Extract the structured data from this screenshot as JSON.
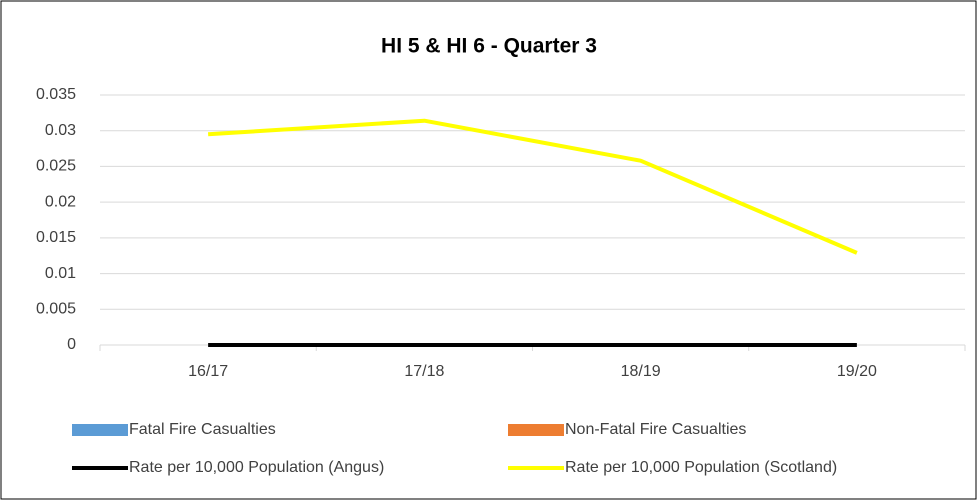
{
  "chart_data": {
    "type": "combo",
    "title": "HI 5 & HI 6 - Quarter 3",
    "categories": [
      "16/17",
      "17/18",
      "18/19",
      "19/20"
    ],
    "series": [
      {
        "name": "Fatal Fire Casualties",
        "type": "bar",
        "color": "#5b9bd5",
        "values": [
          0,
          0,
          0,
          0
        ]
      },
      {
        "name": "Non-Fatal Fire Casualties",
        "type": "bar",
        "color": "#ed7d31",
        "values": [
          0,
          0,
          0,
          0
        ]
      },
      {
        "name": "Rate per 10,000 Population (Angus)",
        "type": "line",
        "color": "#000000",
        "values": [
          0,
          0,
          0,
          0
        ]
      },
      {
        "name": "Rate per 10,000 Population (Scotland)",
        "type": "line",
        "color": "#ffff00",
        "values": [
          0.0295,
          0.0314,
          0.0258,
          0.0129
        ]
      }
    ],
    "ylim": [
      0,
      0.035
    ],
    "yticks": [
      0,
      0.005,
      0.01,
      0.015,
      0.02,
      0.025,
      0.03,
      0.035
    ],
    "grid": true,
    "legend": "bottom"
  }
}
